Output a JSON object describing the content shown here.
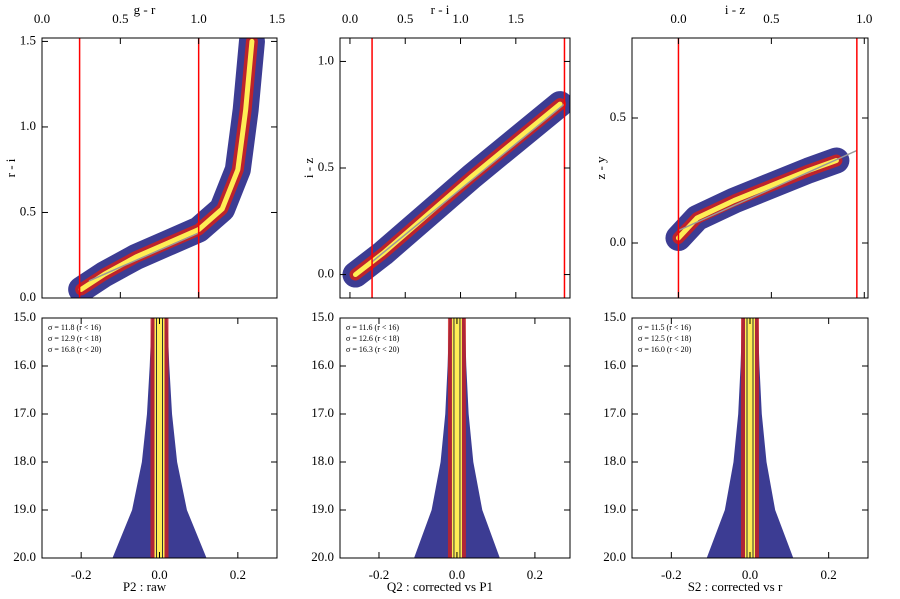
{
  "chart_data": [
    {
      "type": "density",
      "x_label": "g - r",
      "x_axis": "top",
      "y_label": "r - i",
      "xlim": [
        0,
        1.5
      ],
      "xticks": [
        {
          "value": 0,
          "label": "0.0"
        },
        0.5,
        {
          "value": 1,
          "label": "1.0"
        },
        1.5
      ],
      "ylim": [
        0,
        1.52
      ],
      "yticks": [
        {
          "value": 0,
          "label": "0.0"
        },
        0.5,
        {
          "value": 1,
          "label": "1.0"
        },
        1.5
      ],
      "vlines": [
        0.24,
        1.0
      ],
      "vline_color": "#ff0000",
      "fit": {
        "x": [
          0.3,
          1.0
        ],
        "y": [
          0.1,
          0.38
        ],
        "color": "#999999"
      },
      "ridge": {
        "x": [
          0.25,
          0.4,
          0.6,
          0.8,
          1.0,
          1.15,
          1.25,
          1.3,
          1.34
        ],
        "y": [
          0.05,
          0.14,
          0.24,
          0.32,
          0.4,
          0.52,
          0.75,
          1.1,
          1.5
        ]
      },
      "colors": [
        "#1a1a80",
        "#cc2020",
        "#ffee55"
      ]
    },
    {
      "type": "density",
      "x_label": "r - i",
      "x_axis": "top",
      "y_label": "i - z",
      "xlim": [
        -0.09,
        1.99
      ],
      "xticks": [
        {
          "value": 0,
          "label": "0.0"
        },
        0.5,
        {
          "value": 1,
          "label": "1.0"
        },
        1.5
      ],
      "ylim": [
        -0.11,
        1.11
      ],
      "yticks": [
        {
          "value": 0,
          "label": "0.0"
        },
        0.5,
        {
          "value": 1,
          "label": "1.0"
        }
      ],
      "vlines": [
        0.2,
        1.94
      ],
      "vline_color": "#ff0000",
      "fit": {
        "x": [
          0.2,
          1.94
        ],
        "y": [
          0.06,
          0.8
        ],
        "color": "#999999"
      },
      "ridge": {
        "x": [
          0.05,
          0.3,
          0.7,
          1.1,
          1.5,
          1.9
        ],
        "y": [
          0.0,
          0.1,
          0.28,
          0.46,
          0.63,
          0.8
        ]
      },
      "colors": [
        "#1a1a80",
        "#cc2020",
        "#ffee55"
      ]
    },
    {
      "type": "density",
      "x_label": "i - z",
      "x_axis": "top",
      "y_label": "z - y",
      "xlim": [
        -0.25,
        1.02
      ],
      "xticks": [
        {
          "value": 0,
          "label": "0.0"
        },
        0.5,
        {
          "value": 1,
          "label": "1.0"
        }
      ],
      "ylim": [
        -0.22,
        0.82
      ],
      "yticks": [
        {
          "value": 0,
          "label": "0.0"
        },
        0.5
      ],
      "vlines": [
        0.0,
        0.96
      ],
      "vline_color": "#ff0000",
      "fit": {
        "x": [
          0.0,
          0.96
        ],
        "y": [
          0.05,
          0.37
        ],
        "color": "#999999"
      },
      "ridge": {
        "x": [
          0.0,
          0.1,
          0.3,
          0.5,
          0.7,
          0.85
        ],
        "y": [
          0.02,
          0.1,
          0.17,
          0.23,
          0.29,
          0.33
        ]
      },
      "colors": [
        "#1a1a80",
        "#cc2020",
        "#ffee55"
      ]
    },
    {
      "type": "spread",
      "x_label": "P2 : raw",
      "x_axis": "bottom",
      "xlim": [
        -0.3,
        0.3
      ],
      "xticks": [
        -0.2,
        {
          "value": 0,
          "label": "0.0"
        },
        0.2
      ],
      "ylim": [
        20,
        15
      ],
      "yticks": [
        {
          "value": 15,
          "label": "15.0"
        },
        {
          "value": 16,
          "label": "16.0"
        },
        {
          "value": 17,
          "label": "17.0"
        },
        {
          "value": 18,
          "label": "18.0"
        },
        {
          "value": 19,
          "label": "19.0"
        },
        {
          "value": 20,
          "label": "20.0"
        }
      ],
      "annotations": [
        "σ = 11.8 (r < 16)",
        "σ = 12.9 (r < 18)",
        "σ = 16.8 (r < 20)"
      ],
      "spread": {
        "mag": [
          15,
          16,
          17,
          18,
          19,
          20
        ],
        "halfwidth": [
          0.02,
          0.025,
          0.032,
          0.045,
          0.07,
          0.12
        ]
      },
      "colors": [
        "#1a1a80",
        "#cc2020",
        "#ffee55"
      ]
    },
    {
      "type": "spread",
      "x_label": "Q2 : corrected vs P1",
      "x_axis": "bottom",
      "xlim": [
        -0.3,
        0.29
      ],
      "xticks": [
        -0.2,
        {
          "value": 0,
          "label": "0.0"
        },
        0.2
      ],
      "ylim": [
        20,
        15
      ],
      "yticks": [
        {
          "value": 15,
          "label": "15.0"
        },
        {
          "value": 16,
          "label": "16.0"
        },
        {
          "value": 17,
          "label": "17.0"
        },
        {
          "value": 18,
          "label": "18.0"
        },
        {
          "value": 19,
          "label": "19.0"
        },
        {
          "value": 20,
          "label": "20.0"
        }
      ],
      "annotations": [
        "σ = 11.6 (r < 16)",
        "σ = 12.6 (r < 18)",
        "σ = 16.3 (r < 20)"
      ],
      "spread": {
        "mag": [
          15,
          16,
          17,
          18,
          19,
          20
        ],
        "halfwidth": [
          0.02,
          0.024,
          0.03,
          0.042,
          0.065,
          0.11
        ]
      },
      "colors": [
        "#1a1a80",
        "#cc2020",
        "#ffee55"
      ]
    },
    {
      "type": "spread",
      "x_label": "S2 : corrected vs r",
      "x_axis": "bottom",
      "xlim": [
        -0.3,
        0.3
      ],
      "xticks": [
        -0.2,
        {
          "value": 0,
          "label": "0.0"
        },
        0.2
      ],
      "ylim": [
        20,
        15
      ],
      "yticks": [
        {
          "value": 15,
          "label": "15.0"
        },
        {
          "value": 16,
          "label": "16.0"
        },
        {
          "value": 17,
          "label": "17.0"
        },
        {
          "value": 18,
          "label": "18.0"
        },
        {
          "value": 19,
          "label": "19.0"
        },
        {
          "value": 20,
          "label": "20.0"
        }
      ],
      "annotations": [
        "σ = 11.5 (r < 16)",
        "σ = 12.5 (r < 18)",
        "σ = 16.0 (r < 20)"
      ],
      "spread": {
        "mag": [
          15,
          16,
          17,
          18,
          19,
          20
        ],
        "halfwidth": [
          0.02,
          0.024,
          0.03,
          0.042,
          0.064,
          0.11
        ]
      },
      "colors": [
        "#1a1a80",
        "#cc2020",
        "#ffee55"
      ]
    }
  ]
}
